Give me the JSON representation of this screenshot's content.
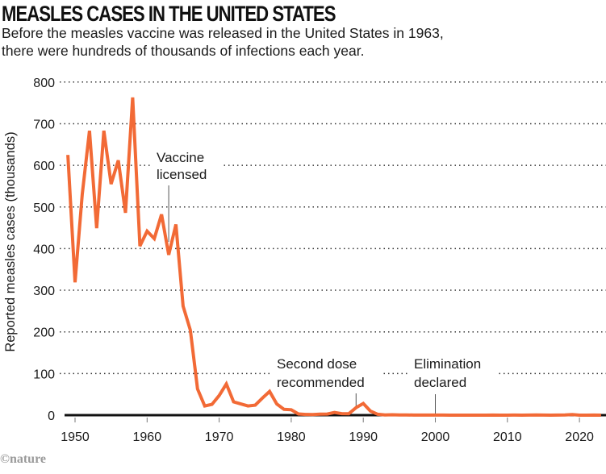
{
  "chart_data": {
    "type": "line",
    "title": "MEASLES CASES IN THE UNITED STATES",
    "subtitle": "Before the measles vaccine was released in the United States in 1963, there were hundreds of thousands of infections each year.",
    "xlabel": "",
    "ylabel": "Reported measles cases (thousands)",
    "xlim": [
      1948,
      2023.5
    ],
    "ylim": [
      0,
      800
    ],
    "grid": true,
    "x_ticks": [
      1950,
      1960,
      1970,
      1980,
      1990,
      2000,
      2010,
      2020
    ],
    "y_ticks": [
      0,
      100,
      200,
      300,
      400,
      500,
      600,
      700,
      800
    ],
    "line_color": "#f26a36",
    "series": [
      {
        "name": "Reported measles cases (thousands)",
        "x": [
          1949,
          1950,
          1951,
          1952,
          1953,
          1954,
          1955,
          1956,
          1957,
          1958,
          1959,
          1960,
          1961,
          1962,
          1963,
          1964,
          1965,
          1966,
          1967,
          1968,
          1969,
          1970,
          1971,
          1972,
          1973,
          1974,
          1975,
          1976,
          1977,
          1978,
          1979,
          1980,
          1981,
          1982,
          1983,
          1984,
          1985,
          1986,
          1987,
          1988,
          1989,
          1990,
          1991,
          1992,
          1993,
          1994,
          1995,
          1996,
          1997,
          1998,
          1999,
          2000,
          2001,
          2002,
          2003,
          2004,
          2005,
          2006,
          2007,
          2008,
          2009,
          2010,
          2011,
          2012,
          2013,
          2014,
          2015,
          2016,
          2017,
          2018,
          2019,
          2020,
          2021,
          2022,
          2023
        ],
        "values": [
          625,
          319,
          530,
          683,
          449,
          683,
          555,
          612,
          486,
          763,
          406,
          442,
          424,
          482,
          385,
          458,
          262,
          204,
          63,
          22,
          26,
          47,
          75,
          32,
          27,
          22,
          24,
          41,
          57,
          27,
          14,
          13,
          3,
          1.7,
          1.5,
          2.6,
          2.8,
          6.3,
          3.7,
          3.4,
          18,
          28,
          9.6,
          2.2,
          0.3,
          1,
          0.3,
          0.5,
          0.1,
          0.1,
          0.1,
          0.1,
          0.1,
          0.04,
          0.06,
          0.04,
          0.07,
          0.06,
          0.04,
          0.14,
          0.07,
          0.06,
          0.22,
          0.06,
          0.19,
          0.67,
          0.19,
          0.09,
          0.12,
          0.38,
          1.28,
          0.01,
          0.05,
          0.12,
          0.06
        ]
      }
    ],
    "annotations": [
      {
        "id": "vaccine",
        "lines": [
          "Vaccine",
          "licensed"
        ],
        "year": 1963
      },
      {
        "id": "second-dose",
        "lines": [
          "Second dose",
          "recommended"
        ],
        "year": 1989
      },
      {
        "id": "elimination",
        "lines": [
          "Elimination",
          "declared"
        ],
        "year": 2000
      }
    ]
  },
  "credit": "©nature"
}
